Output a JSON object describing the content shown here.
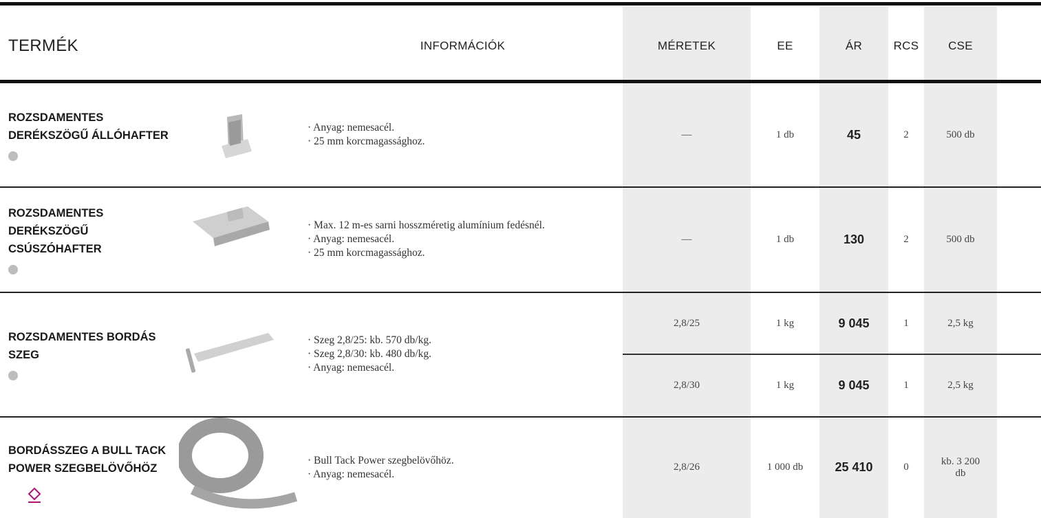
{
  "header": {
    "columns": [
      "TERMÉK",
      "INFORMÁCIÓK",
      "MÉRETEK",
      "EE",
      "ÁR",
      "RCS",
      "CSE"
    ]
  },
  "products": [
    {
      "name": [
        "ROZSDAMENTES",
        "DERÉKSZÖGŰ ÁLLÓHAFTER"
      ],
      "info": [
        "· Anyag: nemesacél.",
        "· 25 mm korcmagassághoz."
      ],
      "variants": [
        {
          "size": "—",
          "ee": "1 db",
          "price": "45",
          "rcs": "2",
          "cse": "500 db"
        }
      ]
    },
    {
      "name": [
        "ROZSDAMENTES",
        "DERÉKSZÖGŰ",
        "CSÚSZÓHAFTER"
      ],
      "info": [
        "· Max. 12 m-es sarni hosszméretig alumínium fedésnél.",
        "· Anyag: nemesacél.",
        "· 25 mm korcmagassághoz."
      ],
      "variants": [
        {
          "size": "—",
          "ee": "1 db",
          "price": "130",
          "rcs": "2",
          "cse": "500 db"
        }
      ]
    },
    {
      "name": [
        "ROZSDAMENTES BORDÁS",
        "SZEG"
      ],
      "info": [
        "· Szeg 2,8/25: kb. 570 db/kg.",
        "· Szeg 2,8/30: kb. 480 db/kg.",
        "· Anyag: nemesacél."
      ],
      "variants": [
        {
          "size": "2,8/25",
          "ee": "1 kg",
          "price": "9 045",
          "rcs": "1",
          "cse": "2,5 kg"
        },
        {
          "size": "2,8/30",
          "ee": "1 kg",
          "price": "9 045",
          "rcs": "1",
          "cse": "2,5 kg"
        }
      ]
    },
    {
      "name": [
        "BORDÁSSZEG A BULL TACK",
        "POWER SZEGBELÖVŐHÖZ"
      ],
      "info": [
        "· Bull Tack Power szegbelövőhöz.",
        "· Anyag: nemesacél."
      ],
      "variants": [
        {
          "size": "2,8/26",
          "ee": "1 000 db",
          "price": "25 410",
          "rcs": "0",
          "cse": "kb. 3 200 db"
        }
      ]
    }
  ]
}
